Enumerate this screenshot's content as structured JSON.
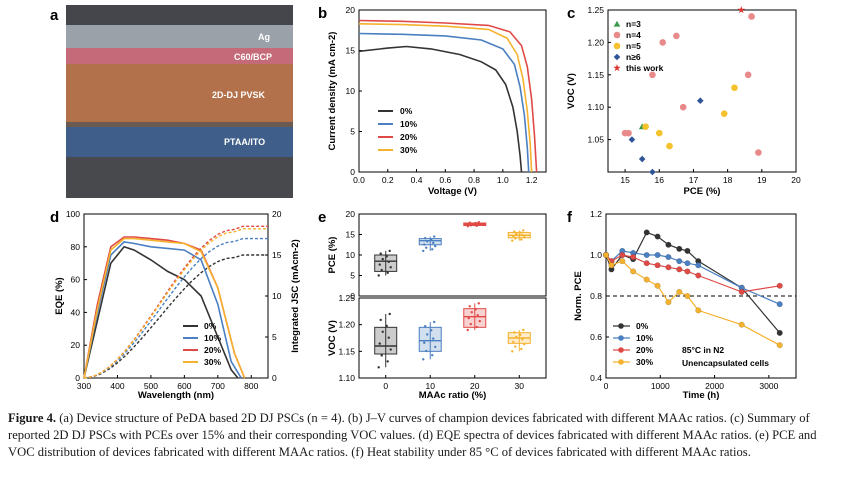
{
  "caption": {
    "label": "Figure 4.",
    "text": "(a) Device structure of PeDA based 2D DJ PSCs (n = 4). (b) J–V curves of champion devices fabricated with different MAAc ratios. (c) Summary of reported 2D DJ PSCs with PCEs over 15% and their corresponding VOC values. (d) EQE spectra of devices fabricated with different MAAc ratios. (e) PCE and VOC distribution of devices fabricated with different MAAc ratios. (f) Heat stability under 85 °C of devices fabricated with different MAAc ratios."
  },
  "colors": {
    "c0": "#333333",
    "c10": "#4a7fc1",
    "c20": "#e04a46",
    "c30": "#f5b22e"
  },
  "chart_data": [
    {
      "panel": "a",
      "type": "other",
      "layers": [
        "Ag",
        "C60/BCP",
        "2D-DJ PVSK",
        "PTAA/ITO"
      ]
    },
    {
      "panel": "b",
      "type": "line",
      "xlabel": "Voltage (V)",
      "ylabel": "Current density (mA cm-2)",
      "xlim": [
        0,
        1.3
      ],
      "ylim": [
        0,
        20
      ],
      "xticks": [
        "0.0",
        "0.2",
        "0.4",
        "0.6",
        "0.8",
        "1.0",
        "1.2"
      ],
      "yticks": [
        "0",
        "5",
        "10",
        "15",
        "20"
      ],
      "series": [
        {
          "name": "0%",
          "x": [
            0,
            0.2,
            0.33,
            0.5,
            0.7,
            0.85,
            0.95,
            1.02,
            1.07,
            1.1,
            1.12,
            1.13
          ],
          "y": [
            14.9,
            15.3,
            15.5,
            15.2,
            14.5,
            13.6,
            12.6,
            10.8,
            8.0,
            5.0,
            2.0,
            0
          ]
        },
        {
          "name": "10%",
          "x": [
            0,
            0.3,
            0.6,
            0.85,
            1.0,
            1.08,
            1.12,
            1.15,
            1.17,
            1.18
          ],
          "y": [
            17.1,
            17.0,
            16.8,
            16.3,
            15.2,
            13.3,
            10.5,
            7.0,
            3.0,
            0
          ]
        },
        {
          "name": "20%",
          "x": [
            0,
            0.3,
            0.6,
            0.9,
            1.05,
            1.13,
            1.17,
            1.2,
            1.22,
            1.235
          ],
          "y": [
            18.7,
            18.6,
            18.4,
            18.1,
            17.3,
            15.6,
            13.0,
            9.0,
            4.5,
            0
          ]
        },
        {
          "name": "30%",
          "x": [
            0,
            0.3,
            0.6,
            0.9,
            1.03,
            1.1,
            1.14,
            1.17,
            1.19,
            1.2
          ],
          "y": [
            18.3,
            18.2,
            18.0,
            17.6,
            16.5,
            14.5,
            11.5,
            7.5,
            3.5,
            0
          ]
        }
      ]
    },
    {
      "panel": "c",
      "type": "scatter",
      "xlabel": "PCE (%)",
      "ylabel": "VOC (V)",
      "xlim": [
        14.5,
        20
      ],
      "ylim": [
        1.0,
        1.25
      ],
      "xticks": [
        "15",
        "16",
        "17",
        "18",
        "19",
        "20"
      ],
      "yticks": [
        "1.05",
        "1.10",
        "1.15",
        "1.20",
        "1.25"
      ],
      "series": [
        {
          "name": "n=3",
          "marker": "triangle",
          "color": "#3a9a4a",
          "points": [
            [
              15.5,
              1.07
            ]
          ]
        },
        {
          "name": "n=4",
          "marker": "circle",
          "color": "#e8898a",
          "points": [
            [
              15.0,
              1.06
            ],
            [
              15.1,
              1.06
            ],
            [
              15.8,
              1.15
            ],
            [
              16.1,
              1.2
            ],
            [
              16.5,
              1.21
            ],
            [
              16.7,
              1.1
            ],
            [
              18.6,
              1.15
            ],
            [
              18.7,
              1.24
            ],
            [
              18.9,
              1.03
            ]
          ]
        },
        {
          "name": "n=5",
          "marker": "circle",
          "color": "#f5c22e",
          "points": [
            [
              15.6,
              1.07
            ],
            [
              16.0,
              1.06
            ],
            [
              16.3,
              1.04
            ],
            [
              17.9,
              1.09
            ],
            [
              18.2,
              1.13
            ]
          ]
        },
        {
          "name": "n≥6",
          "marker": "diamond",
          "color": "#2f5597",
          "points": [
            [
              15.2,
              1.05
            ],
            [
              15.5,
              1.02
            ],
            [
              15.8,
              1.0
            ],
            [
              17.2,
              1.11
            ]
          ]
        },
        {
          "name": "this work",
          "marker": "star",
          "color": "#e0302c",
          "points": [
            [
              18.4,
              1.25
            ]
          ]
        }
      ]
    },
    {
      "panel": "d",
      "type": "line",
      "xlabel": "Wavelength (nm)",
      "ylabel": "EQE (%)",
      "y2label": "Integrated JSC (mAcm-2)",
      "xlim": [
        300,
        850
      ],
      "ylim": [
        0,
        100
      ],
      "y2lim": [
        0,
        20
      ],
      "xticks": [
        "300",
        "400",
        "500",
        "600",
        "700",
        "800"
      ],
      "yticks": [
        "0",
        "20",
        "40",
        "60",
        "80",
        "100"
      ],
      "y2ticks": [
        "0",
        "5",
        "10",
        "15",
        "20"
      ],
      "series": [
        {
          "name": "0%",
          "x": [
            300,
            340,
            380,
            420,
            450,
            500,
            550,
            600,
            650,
            700,
            740,
            760
          ],
          "y": [
            0,
            35,
            70,
            80,
            78,
            72,
            65,
            60,
            50,
            25,
            5,
            0
          ],
          "jsc_final": 15.0
        },
        {
          "name": "10%",
          "x": [
            300,
            340,
            380,
            420,
            450,
            500,
            550,
            600,
            650,
            700,
            740,
            770
          ],
          "y": [
            0,
            40,
            75,
            83,
            82,
            80,
            79,
            78,
            72,
            45,
            10,
            0
          ],
          "jsc_final": 17.0
        },
        {
          "name": "20%",
          "x": [
            300,
            340,
            380,
            420,
            450,
            500,
            550,
            600,
            650,
            700,
            750,
            780
          ],
          "y": [
            0,
            45,
            80,
            86,
            86,
            85,
            84,
            82,
            78,
            55,
            15,
            0
          ],
          "jsc_final": 18.5
        },
        {
          "name": "30%",
          "x": [
            300,
            340,
            380,
            420,
            450,
            500,
            550,
            600,
            650,
            700,
            750,
            780
          ],
          "y": [
            0,
            42,
            78,
            85,
            85,
            84,
            83,
            82,
            77,
            55,
            15,
            0
          ],
          "jsc_final": 18.2
        }
      ]
    },
    {
      "panel": "e",
      "type": "box",
      "xlabel": "MAAc ratio (%)",
      "categories": [
        "0",
        "10",
        "20",
        "30"
      ],
      "top": {
        "ylabel": "PCE (%)",
        "ylim": [
          0,
          20
        ],
        "yticks": [
          "0",
          "5",
          "10",
          "15",
          "20"
        ],
        "boxes": [
          {
            "min": 5,
            "q1": 6,
            "median": 8.5,
            "q3": 10,
            "max": 11
          },
          {
            "min": 11,
            "q1": 12.5,
            "median": 13.5,
            "q3": 14,
            "max": 14.5
          },
          {
            "min": 17,
            "q1": 17.2,
            "median": 17.5,
            "q3": 17.8,
            "max": 18
          },
          {
            "min": 13.5,
            "q1": 14.2,
            "median": 14.8,
            "q3": 15.5,
            "max": 16
          }
        ]
      },
      "bottom": {
        "ylabel": "VOC (V)",
        "ylim": [
          1.1,
          1.25
        ],
        "yticks": [
          "1.10",
          "1.15",
          "1.20",
          "1.25"
        ],
        "boxes": [
          {
            "min": 1.12,
            "q1": 1.145,
            "median": 1.16,
            "q3": 1.195,
            "max": 1.22
          },
          {
            "min": 1.135,
            "q1": 1.15,
            "median": 1.17,
            "q3": 1.195,
            "max": 1.205
          },
          {
            "min": 1.19,
            "q1": 1.195,
            "median": 1.215,
            "q3": 1.23,
            "max": 1.24
          },
          {
            "min": 1.15,
            "q1": 1.165,
            "median": 1.175,
            "q3": 1.185,
            "max": 1.19
          }
        ]
      }
    },
    {
      "panel": "f",
      "type": "line",
      "xlabel": "Time (h)",
      "ylabel": "Norm. PCE",
      "xlim": [
        0,
        3500
      ],
      "ylim": [
        0.4,
        1.2
      ],
      "xticks": [
        "0",
        "1000",
        "2000",
        "3000"
      ],
      "yticks": [
        "0.4",
        "0.6",
        "0.8",
        "1.0",
        "1.2"
      ],
      "reference_line": 0.8,
      "annotations": [
        "85°C in N2",
        "Unencapsulated cells"
      ],
      "series": [
        {
          "name": "0%",
          "x": [
            0,
            100,
            300,
            500,
            750,
            950,
            1150,
            1350,
            1500,
            1700,
            2500,
            3200
          ],
          "y": [
            1.0,
            0.93,
            1.0,
            0.98,
            1.11,
            1.09,
            1.05,
            1.03,
            1.02,
            0.97,
            0.84,
            0.62
          ]
        },
        {
          "name": "10%",
          "x": [
            0,
            100,
            300,
            500,
            750,
            950,
            1150,
            1350,
            1500,
            1700,
            2500,
            3200
          ],
          "y": [
            1.0,
            0.97,
            1.02,
            1.01,
            1.0,
            1.0,
            0.99,
            0.97,
            0.96,
            0.95,
            0.84,
            0.76
          ]
        },
        {
          "name": "20%",
          "x": [
            0,
            100,
            300,
            500,
            750,
            950,
            1150,
            1350,
            1500,
            1700,
            2500,
            3200
          ],
          "y": [
            1.0,
            0.97,
            1.0,
            0.99,
            0.96,
            0.95,
            0.94,
            0.93,
            0.92,
            0.9,
            0.82,
            0.85
          ]
        },
        {
          "name": "30%",
          "x": [
            0,
            100,
            300,
            500,
            750,
            950,
            1150,
            1350,
            1500,
            1700,
            2500,
            3200
          ],
          "y": [
            1.0,
            0.95,
            0.97,
            0.92,
            0.88,
            0.85,
            0.77,
            0.82,
            0.8,
            0.73,
            0.66,
            0.56
          ]
        }
      ]
    }
  ]
}
